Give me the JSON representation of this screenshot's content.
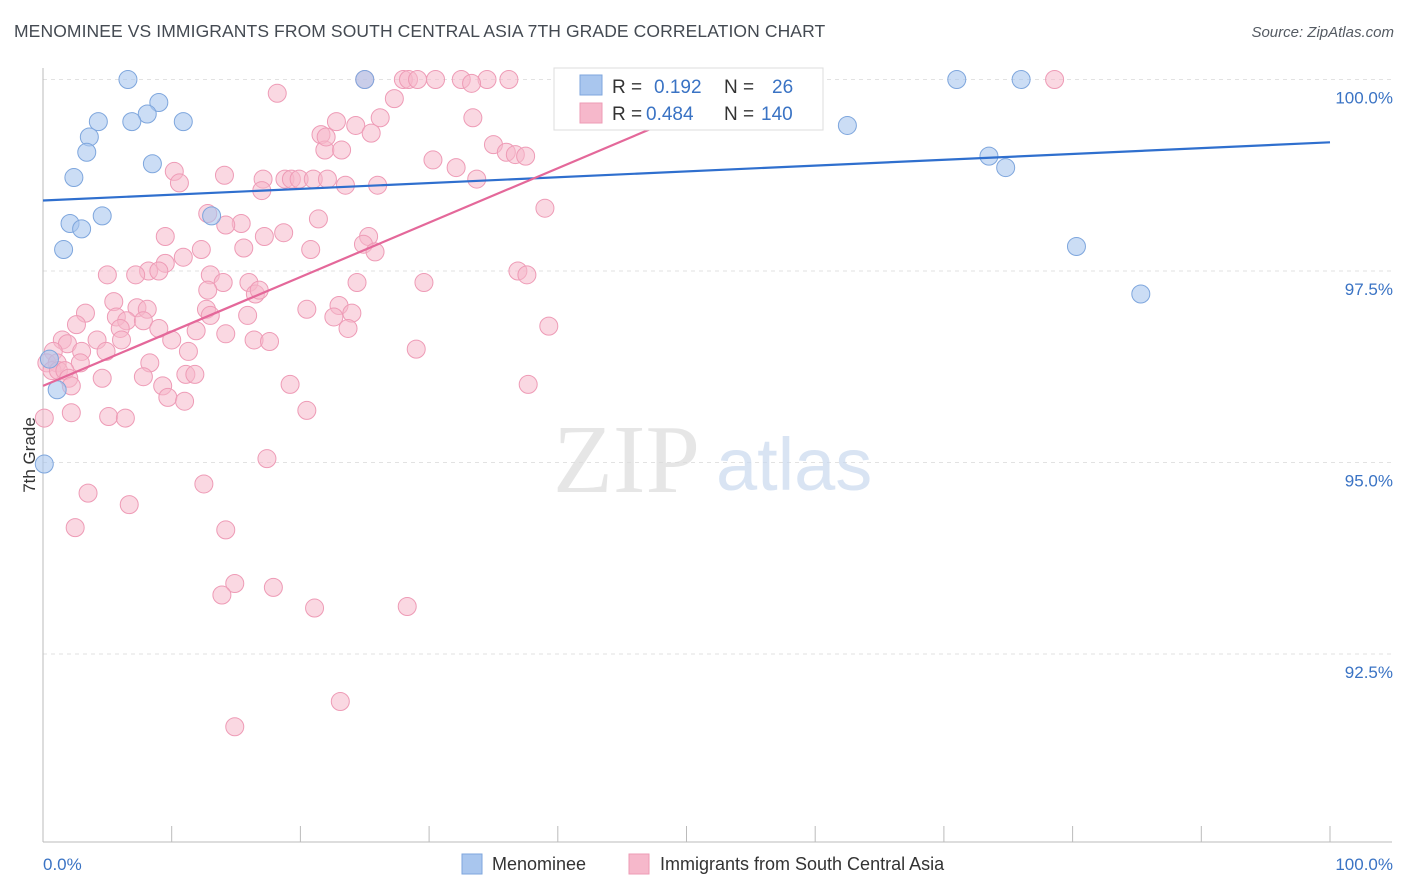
{
  "title": "MENOMINEE VS IMMIGRANTS FROM SOUTH CENTRAL ASIA 7TH GRADE CORRELATION CHART",
  "source": "Source: ZipAtlas.com",
  "watermark": {
    "zip": "ZIP",
    "atlas": "atlas"
  },
  "colors": {
    "blue_fill": "#a9c6ee",
    "blue_stroke": "#7ea6dd",
    "blue_line": "#2f6fce",
    "pink_fill": "#f6b8cb",
    "pink_stroke": "#ee9bb6",
    "pink_line": "#e4689a",
    "tick_text": "#3a73c4",
    "grid": "#e2e2e2"
  },
  "legend": {
    "rows": [
      {
        "r_label": "R =",
        "r_value": "0.192",
        "n_label": "N =",
        "n_value": "26"
      },
      {
        "r_label": "R =",
        "r_value": "0.484",
        "n_label": "N =",
        "n_value": "140"
      }
    ]
  },
  "chart_data": {
    "type": "scatter",
    "title": "MENOMINEE VS IMMIGRANTS FROM SOUTH CENTRAL ASIA 7TH GRADE CORRELATION CHART",
    "xlabel": "",
    "ylabel": "7th Grade",
    "xlim": [
      0,
      100
    ],
    "ylim": [
      90.2,
      100.2
    ],
    "x_tick_labels": [
      "0.0%",
      "100.0%"
    ],
    "y_ticks": [
      92.5,
      95.0,
      97.5,
      100.0
    ],
    "y_tick_labels": [
      "92.5%",
      "95.0%",
      "97.5%",
      "100.0%"
    ],
    "grid": true,
    "legend_position": "bottom",
    "series": [
      {
        "name": "Menominee",
        "r": 0.192,
        "n": 26,
        "trend": {
          "x": [
            0,
            100
          ],
          "y": [
            98.42,
            99.18
          ]
        },
        "points": [
          {
            "x": 6.6,
            "y": 100.0
          },
          {
            "x": 25.0,
            "y": 100.0
          },
          {
            "x": 71.0,
            "y": 100.0
          },
          {
            "x": 76.0,
            "y": 100.0
          },
          {
            "x": 9.0,
            "y": 99.7
          },
          {
            "x": 8.1,
            "y": 99.55
          },
          {
            "x": 6.9,
            "y": 99.45
          },
          {
            "x": 4.3,
            "y": 99.45
          },
          {
            "x": 10.9,
            "y": 99.45
          },
          {
            "x": 62.5,
            "y": 99.4
          },
          {
            "x": 3.6,
            "y": 99.25
          },
          {
            "x": 3.4,
            "y": 99.05
          },
          {
            "x": 8.5,
            "y": 98.9
          },
          {
            "x": 73.5,
            "y": 99.0
          },
          {
            "x": 74.8,
            "y": 98.85
          },
          {
            "x": 2.4,
            "y": 98.72
          },
          {
            "x": 4.6,
            "y": 98.22
          },
          {
            "x": 13.1,
            "y": 98.22
          },
          {
            "x": 2.1,
            "y": 98.12
          },
          {
            "x": 3.0,
            "y": 98.05
          },
          {
            "x": 1.6,
            "y": 97.78
          },
          {
            "x": 80.3,
            "y": 97.82
          },
          {
            "x": 85.3,
            "y": 97.2
          },
          {
            "x": 0.5,
            "y": 96.35
          },
          {
            "x": 1.1,
            "y": 95.95
          },
          {
            "x": 0.1,
            "y": 94.98
          }
        ]
      },
      {
        "name": "Immigrants from South Central Asia",
        "r": 0.484,
        "n": 140,
        "trend": {
          "x": [
            0,
            56.3
          ],
          "y": [
            96.0,
            100.0
          ]
        },
        "points": [
          {
            "x": 25.0,
            "y": 100.0
          },
          {
            "x": 28.0,
            "y": 100.0
          },
          {
            "x": 28.4,
            "y": 100.0
          },
          {
            "x": 29.1,
            "y": 100.0
          },
          {
            "x": 30.5,
            "y": 100.0
          },
          {
            "x": 32.5,
            "y": 100.0
          },
          {
            "x": 34.5,
            "y": 100.0
          },
          {
            "x": 36.2,
            "y": 100.0
          },
          {
            "x": 41.0,
            "y": 100.0
          },
          {
            "x": 78.6,
            "y": 100.0
          },
          {
            "x": 18.2,
            "y": 99.82
          },
          {
            "x": 27.3,
            "y": 99.75
          },
          {
            "x": 33.3,
            "y": 99.95
          },
          {
            "x": 22.8,
            "y": 99.45
          },
          {
            "x": 21.6,
            "y": 99.28
          },
          {
            "x": 24.3,
            "y": 99.4
          },
          {
            "x": 26.2,
            "y": 99.5
          },
          {
            "x": 33.4,
            "y": 99.5
          },
          {
            "x": 21.9,
            "y": 99.08
          },
          {
            "x": 23.2,
            "y": 99.08
          },
          {
            "x": 22.0,
            "y": 99.25
          },
          {
            "x": 25.5,
            "y": 99.3
          },
          {
            "x": 35.0,
            "y": 99.15
          },
          {
            "x": 36.0,
            "y": 99.05
          },
          {
            "x": 36.7,
            "y": 99.02
          },
          {
            "x": 37.5,
            "y": 99.0
          },
          {
            "x": 30.3,
            "y": 98.95
          },
          {
            "x": 32.1,
            "y": 98.85
          },
          {
            "x": 33.7,
            "y": 98.7
          },
          {
            "x": 10.2,
            "y": 98.8
          },
          {
            "x": 14.1,
            "y": 98.75
          },
          {
            "x": 17.1,
            "y": 98.7
          },
          {
            "x": 18.8,
            "y": 98.7
          },
          {
            "x": 19.3,
            "y": 98.7
          },
          {
            "x": 19.9,
            "y": 98.7
          },
          {
            "x": 21.0,
            "y": 98.7
          },
          {
            "x": 22.1,
            "y": 98.7
          },
          {
            "x": 10.6,
            "y": 98.65
          },
          {
            "x": 23.5,
            "y": 98.62
          },
          {
            "x": 17.0,
            "y": 98.55
          },
          {
            "x": 26.0,
            "y": 98.62
          },
          {
            "x": 39.0,
            "y": 98.32
          },
          {
            "x": 12.8,
            "y": 98.25
          },
          {
            "x": 15.4,
            "y": 98.12
          },
          {
            "x": 21.4,
            "y": 98.18
          },
          {
            "x": 14.2,
            "y": 98.1
          },
          {
            "x": 18.7,
            "y": 98.0
          },
          {
            "x": 17.2,
            "y": 97.95
          },
          {
            "x": 9.5,
            "y": 97.95
          },
          {
            "x": 25.3,
            "y": 97.95
          },
          {
            "x": 24.9,
            "y": 97.85
          },
          {
            "x": 12.3,
            "y": 97.78
          },
          {
            "x": 15.6,
            "y": 97.8
          },
          {
            "x": 20.8,
            "y": 97.78
          },
          {
            "x": 25.8,
            "y": 97.75
          },
          {
            "x": 10.9,
            "y": 97.68
          },
          {
            "x": 8.2,
            "y": 97.5
          },
          {
            "x": 9.5,
            "y": 97.6
          },
          {
            "x": 9.0,
            "y": 97.5
          },
          {
            "x": 5.0,
            "y": 97.45
          },
          {
            "x": 13.0,
            "y": 97.45
          },
          {
            "x": 7.2,
            "y": 97.45
          },
          {
            "x": 14.0,
            "y": 97.35
          },
          {
            "x": 16.0,
            "y": 97.35
          },
          {
            "x": 24.4,
            "y": 97.35
          },
          {
            "x": 29.6,
            "y": 97.35
          },
          {
            "x": 36.9,
            "y": 97.5
          },
          {
            "x": 37.6,
            "y": 97.45
          },
          {
            "x": 12.8,
            "y": 97.25
          },
          {
            "x": 16.5,
            "y": 97.2
          },
          {
            "x": 16.8,
            "y": 97.25
          },
          {
            "x": 5.5,
            "y": 97.1
          },
          {
            "x": 7.3,
            "y": 97.02
          },
          {
            "x": 8.1,
            "y": 97.0
          },
          {
            "x": 12.7,
            "y": 97.0
          },
          {
            "x": 20.5,
            "y": 97.0
          },
          {
            "x": 23.0,
            "y": 97.05
          },
          {
            "x": 24.0,
            "y": 96.95
          },
          {
            "x": 3.3,
            "y": 96.95
          },
          {
            "x": 5.7,
            "y": 96.9
          },
          {
            "x": 6.5,
            "y": 96.85
          },
          {
            "x": 7.8,
            "y": 96.85
          },
          {
            "x": 13.0,
            "y": 96.92
          },
          {
            "x": 15.9,
            "y": 96.92
          },
          {
            "x": 22.6,
            "y": 96.9
          },
          {
            "x": 2.6,
            "y": 96.8
          },
          {
            "x": 6.0,
            "y": 96.75
          },
          {
            "x": 9.0,
            "y": 96.75
          },
          {
            "x": 11.9,
            "y": 96.72
          },
          {
            "x": 14.2,
            "y": 96.68
          },
          {
            "x": 23.7,
            "y": 96.75
          },
          {
            "x": 39.3,
            "y": 96.78
          },
          {
            "x": 1.5,
            "y": 96.6
          },
          {
            "x": 4.2,
            "y": 96.6
          },
          {
            "x": 6.1,
            "y": 96.6
          },
          {
            "x": 10.0,
            "y": 96.6
          },
          {
            "x": 16.4,
            "y": 96.6
          },
          {
            "x": 17.6,
            "y": 96.58
          },
          {
            "x": 1.9,
            "y": 96.55
          },
          {
            "x": 0.8,
            "y": 96.45
          },
          {
            "x": 3.0,
            "y": 96.45
          },
          {
            "x": 4.9,
            "y": 96.45
          },
          {
            "x": 11.3,
            "y": 96.45
          },
          {
            "x": 29.0,
            "y": 96.48
          },
          {
            "x": 0.3,
            "y": 96.3
          },
          {
            "x": 1.1,
            "y": 96.3
          },
          {
            "x": 2.9,
            "y": 96.3
          },
          {
            "x": 8.3,
            "y": 96.3
          },
          {
            "x": 0.7,
            "y": 96.2
          },
          {
            "x": 1.2,
            "y": 96.2
          },
          {
            "x": 1.7,
            "y": 96.2
          },
          {
            "x": 11.1,
            "y": 96.15
          },
          {
            "x": 11.8,
            "y": 96.15
          },
          {
            "x": 7.8,
            "y": 96.12
          },
          {
            "x": 2.0,
            "y": 96.1
          },
          {
            "x": 4.6,
            "y": 96.1
          },
          {
            "x": 2.2,
            "y": 96.0
          },
          {
            "x": 9.3,
            "y": 96.0
          },
          {
            "x": 19.2,
            "y": 96.02
          },
          {
            "x": 37.7,
            "y": 96.02
          },
          {
            "x": 9.7,
            "y": 95.85
          },
          {
            "x": 11.0,
            "y": 95.8
          },
          {
            "x": 20.5,
            "y": 95.68
          },
          {
            "x": 2.2,
            "y": 95.65
          },
          {
            "x": 5.1,
            "y": 95.6
          },
          {
            "x": 6.4,
            "y": 95.58
          },
          {
            "x": 0.1,
            "y": 95.58
          },
          {
            "x": 17.4,
            "y": 95.05
          },
          {
            "x": 12.5,
            "y": 94.72
          },
          {
            "x": 3.5,
            "y": 94.6
          },
          {
            "x": 6.7,
            "y": 94.45
          },
          {
            "x": 2.5,
            "y": 94.15
          },
          {
            "x": 14.2,
            "y": 94.12
          },
          {
            "x": 14.9,
            "y": 93.42
          },
          {
            "x": 17.9,
            "y": 93.37
          },
          {
            "x": 13.9,
            "y": 93.27
          },
          {
            "x": 21.1,
            "y": 93.1
          },
          {
            "x": 28.3,
            "y": 93.12
          },
          {
            "x": 23.1,
            "y": 91.88
          },
          {
            "x": 14.9,
            "y": 91.55
          }
        ]
      }
    ]
  }
}
